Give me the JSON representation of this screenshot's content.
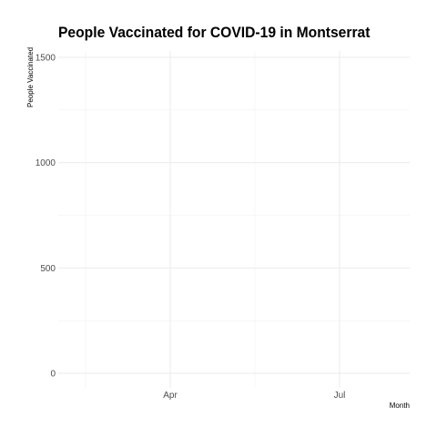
{
  "chart_data": {
    "type": "line",
    "title": "People Vaccinated for COVID-19 in Montserrat",
    "xlabel": "Month",
    "ylabel": "People Vaccinated",
    "x_tick_labels": [
      "Apr",
      "Jul"
    ],
    "y_ticks": [
      0,
      500,
      1000,
      1500
    ],
    "ylim": [
      0,
      1500
    ],
    "grid": true,
    "series": []
  }
}
